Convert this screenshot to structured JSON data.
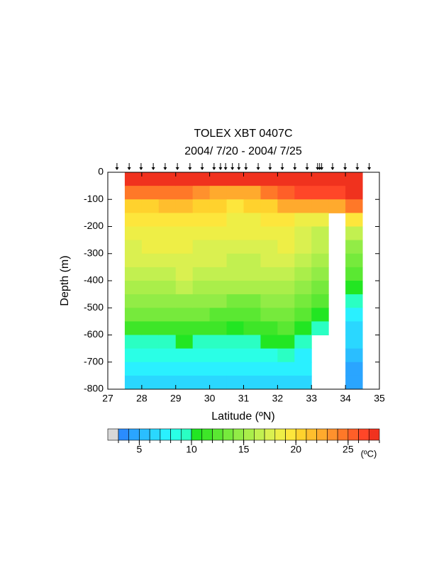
{
  "chart_data": {
    "type": "contour",
    "title": "TOLEX XBT 0407C",
    "subtitle": "2004/ 7/20 - 2004/ 7/25",
    "xlabel": "Latitude (ºN)",
    "ylabel": "Depth (m)",
    "xlim": [
      27,
      35
    ],
    "ylim": [
      -800,
      0
    ],
    "xticks": [
      27,
      28,
      29,
      30,
      31,
      32,
      33,
      34,
      35
    ],
    "yticks": [
      -800,
      -700,
      -600,
      -500,
      -400,
      -300,
      -200,
      -100,
      0
    ],
    "x": [
      27.75,
      28.25,
      28.75,
      29.25,
      29.75,
      30.25,
      30.75,
      31.25,
      31.75,
      32.25,
      32.75,
      33.25,
      33.75,
      34.25
    ],
    "y": [
      -25,
      -75,
      -125,
      -175,
      -225,
      -275,
      -325,
      -375,
      -425,
      -475,
      -525,
      -575,
      -625,
      -675,
      -725,
      -775
    ],
    "z": [
      [
        27.5,
        24,
        20.5,
        19.3,
        18.6,
        17.9,
        17.2,
        16.5,
        15.5,
        14.3,
        13,
        11.5,
        9.8,
        8.5,
        7.4,
        6.3
      ],
      [
        27.5,
        24,
        20.7,
        19.4,
        18.7,
        18,
        17.3,
        16.6,
        15.6,
        14.4,
        13,
        11.4,
        9.7,
        8.4,
        7.3,
        6.2
      ],
      [
        27.6,
        24.3,
        21,
        19.6,
        18.8,
        18.1,
        17.4,
        16.8,
        15.8,
        14.6,
        13.2,
        11.6,
        9.8,
        8.5,
        7.4,
        6.4
      ],
      [
        27.7,
        24.5,
        21.2,
        19.7,
        18.9,
        18.3,
        17.6,
        17,
        16.1,
        14.9,
        13.5,
        11.8,
        10,
        8.6,
        7.5,
        6.5
      ],
      [
        27.8,
        23.5,
        20.5,
        19.4,
        18.6,
        17.9,
        17.3,
        16.6,
        15.7,
        14.5,
        13.1,
        11.5,
        9.9,
        8.5,
        7.4,
        6.4
      ],
      [
        27.8,
        22.5,
        20,
        19,
        18.3,
        17.6,
        17,
        16.2,
        15.2,
        14,
        12.6,
        11.1,
        9.6,
        8.3,
        7.2,
        6.3
      ],
      [
        27.7,
        22,
        19.8,
        18.8,
        18.1,
        17.5,
        16.8,
        16,
        15,
        13.7,
        12.4,
        10.8,
        9.3,
        8.1,
        7.1,
        6.2
      ],
      [
        27.7,
        22.5,
        20,
        18.9,
        18.2,
        17.6,
        16.9,
        16.1,
        15.1,
        13.8,
        12.5,
        11,
        9.5,
        8.3,
        7.2,
        6.3
      ],
      [
        27.8,
        24,
        20.8,
        19.3,
        18.6,
        17.9,
        17.2,
        16.5,
        15.6,
        14.4,
        13.2,
        11.8,
        10.4,
        8.8,
        7.5,
        6.4
      ],
      [
        27.9,
        25,
        22,
        19.8,
        18.8,
        18.1,
        17.4,
        16.7,
        15.8,
        14.7,
        13.5,
        12.2,
        10.7,
        9,
        7.7,
        6.5
      ],
      [
        28,
        26,
        22,
        18.8,
        17.8,
        17.2,
        16.5,
        15.8,
        14.8,
        13.5,
        12,
        10.5,
        9,
        7.8,
        7,
        6.2
      ],
      [
        28.2,
        26.5,
        22.5,
        18.2,
        16.8,
        16,
        15.2,
        14.4,
        13.3,
        12,
        10.5,
        9.3,
        null,
        null,
        null,
        null
      ],
      [
        28.2,
        26.8,
        22.8,
        null,
        null,
        null,
        null,
        null,
        null,
        null,
        null,
        null,
        null,
        null,
        null,
        null
      ],
      [
        28,
        27,
        24,
        19,
        16.5,
        14.8,
        13.5,
        12,
        10.5,
        9,
        7.8,
        6.8,
        6,
        5.2,
        4.5,
        4
      ]
    ],
    "stations": [
      27.27,
      27.63,
      27.98,
      28.34,
      28.69,
      29.05,
      29.42,
      29.78,
      30.13,
      30.32,
      30.47,
      30.67,
      30.86,
      31.07,
      31.43,
      31.78,
      32.14,
      32.51,
      32.87,
      33.18,
      33.24,
      33.3,
      33.62,
      33.99,
      34.35,
      34.7
    ],
    "colorbar": {
      "levels": [
        3,
        4,
        5,
        6,
        7,
        8,
        9,
        10,
        11,
        12,
        13,
        14,
        15,
        16,
        17,
        18,
        19,
        20,
        21,
        22,
        23,
        24,
        25,
        26,
        27,
        28
      ],
      "colors": [
        "#2a8cff",
        "#2aa5ff",
        "#2abeff",
        "#2ad7ff",
        "#2af0ff",
        "#2affe6",
        "#2affc3",
        "#22e622",
        "#3ee628",
        "#5ae832",
        "#76ea3c",
        "#92ec46",
        "#aaee4a",
        "#c2f050",
        "#daf050",
        "#eeee46",
        "#fde63c",
        "#ffd22d",
        "#ffbe2d",
        "#ffaa2d",
        "#ff912d",
        "#ff7828",
        "#ff5f28",
        "#ff4628",
        "#f0321e"
      ],
      "below_color": "#d8d8d8",
      "ticks": [
        5,
        10,
        15,
        20,
        25
      ],
      "unit": "(ºC)"
    }
  }
}
